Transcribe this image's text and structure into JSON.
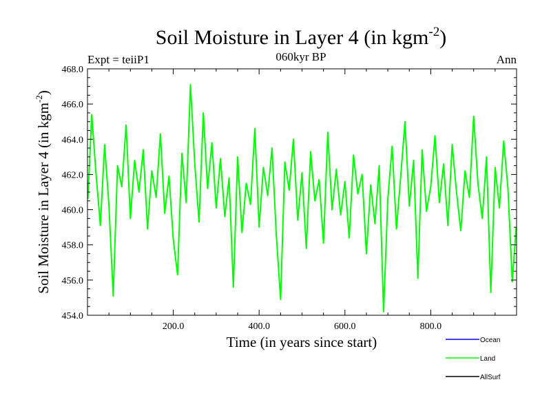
{
  "chart_data": {
    "type": "line",
    "title": "Soil Moisture in Layer 4 (in kgm",
    "title_sup": "-2",
    "title_close": ")",
    "subtitle": "060kyr BP",
    "left_label": "Expt = teiiP1",
    "right_label": "Ann",
    "xlabel": "Time (in years since start)",
    "ylabel": "Soil Moisture in Layer 4 (in kgm",
    "ylabel_sup": "-2",
    "ylabel_close": ")",
    "xlim": [
      0,
      1000
    ],
    "ylim": [
      454.0,
      468.0
    ],
    "xticks": [
      200,
      400,
      600,
      800
    ],
    "xtick_labels": [
      "200.0",
      "400.0",
      "600.0",
      "800.0"
    ],
    "yticks": [
      454,
      456,
      458,
      460,
      462,
      464,
      466,
      468
    ],
    "ytick_labels": [
      "454.0",
      "456.0",
      "458.0",
      "460.0",
      "462.0",
      "464.0",
      "466.0",
      "468.0"
    ],
    "grid": false,
    "legend_position": "bottom-right",
    "legend": [
      {
        "name": "Ocean",
        "color": "#0000ff"
      },
      {
        "name": "Land",
        "color": "#00ff00"
      },
      {
        "name": "AllSurf",
        "color": "#000000"
      }
    ],
    "series": [
      {
        "name": "Land",
        "color": "#00ff00",
        "x": [
          1,
          10,
          20,
          30,
          40,
          50,
          60,
          70,
          80,
          90,
          100,
          110,
          120,
          130,
          140,
          150,
          160,
          170,
          180,
          190,
          200,
          210,
          220,
          230,
          240,
          250,
          260,
          270,
          280,
          290,
          300,
          310,
          320,
          330,
          340,
          350,
          360,
          370,
          380,
          390,
          400,
          410,
          420,
          430,
          440,
          450,
          460,
          470,
          480,
          490,
          500,
          510,
          520,
          530,
          540,
          550,
          560,
          570,
          580,
          590,
          600,
          610,
          620,
          630,
          640,
          650,
          660,
          670,
          680,
          690,
          700,
          710,
          720,
          730,
          740,
          750,
          760,
          770,
          780,
          790,
          800,
          810,
          820,
          830,
          840,
          850,
          860,
          870,
          880,
          890,
          900,
          910,
          920,
          930,
          940,
          950,
          960,
          970,
          980,
          990,
          999
        ],
        "y": [
          460.6,
          465.4,
          462.0,
          459.1,
          463.7,
          460.2,
          455.1,
          462.5,
          461.3,
          464.8,
          459.5,
          462.8,
          461.0,
          463.4,
          458.9,
          462.2,
          460.7,
          464.3,
          459.8,
          461.9,
          458.3,
          456.3,
          463.2,
          460.4,
          467.1,
          462.6,
          459.3,
          465.5,
          461.2,
          463.8,
          460.1,
          462.9,
          459.6,
          461.8,
          455.6,
          463.0,
          458.7,
          461.5,
          460.3,
          464.6,
          459.0,
          462.4,
          460.8,
          463.5,
          458.6,
          454.9,
          462.7,
          461.1,
          464.0,
          459.4,
          462.1,
          457.8,
          463.3,
          460.5,
          461.7,
          458.1,
          464.4,
          460.0,
          462.3,
          459.7,
          461.6,
          458.4,
          463.1,
          460.9,
          462.0,
          457.5,
          461.4,
          459.2,
          462.5,
          454.2,
          460.6,
          463.6,
          458.9,
          461.9,
          465.0,
          460.2,
          462.8,
          456.1,
          463.4,
          459.9,
          461.3,
          464.2,
          460.4,
          462.6,
          459.1,
          463.7,
          461.0,
          458.8,
          462.2,
          460.7,
          465.3,
          461.5,
          459.5,
          463.0,
          455.3,
          462.4,
          460.1,
          463.9,
          461.2,
          455.9,
          459.0
        ]
      }
    ]
  }
}
